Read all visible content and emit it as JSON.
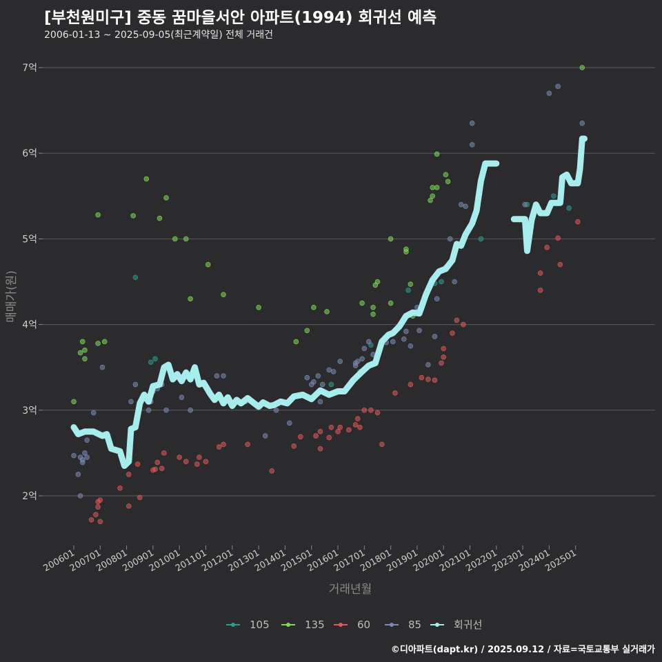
{
  "header": {
    "title": "[부천원미구] 중동 꿈마을서안 아파트(1994) 회귀선 예측",
    "subtitle": "2006-01-13 ~ 2025-09-05(최근계약일) 전체 거래건"
  },
  "footer": {
    "credit": "©디아파트(dapt.kr) / 2025.09.12 / 자료=국토교통부 실거래가"
  },
  "chart_data": {
    "type": "scatter",
    "xlabel": "거래년월",
    "ylabel": "매매가(원)",
    "x_ticks": [
      "200601",
      "200701",
      "200801",
      "200901",
      "201001",
      "201101",
      "201201",
      "201301",
      "201401",
      "201501",
      "201601",
      "201701",
      "201801",
      "201901",
      "202001",
      "202101",
      "202201",
      "202301",
      "202401",
      "202501"
    ],
    "y_ticks": [
      {
        "value": 2,
        "label": "2억"
      },
      {
        "value": 3,
        "label": "3억"
      },
      {
        "value": 4,
        "label": "4억"
      },
      {
        "value": 5,
        "label": "5억"
      },
      {
        "value": 6,
        "label": "6억"
      },
      {
        "value": 7,
        "label": "7억"
      }
    ],
    "ylim": [
      1.45,
      7.35
    ],
    "grid": "horizontal",
    "legend_position": "bottom",
    "colors": {
      "105": "#2a9d8f",
      "135": "#7ed957",
      "60": "#e05a5a",
      "85": "#7c8bb5",
      "회귀선": "#a8eded"
    },
    "series": [
      {
        "name": "105",
        "points": [
          [
            "2008-12",
            3.56
          ],
          [
            "2009-02",
            3.6
          ],
          [
            "2016-11",
            3.45
          ],
          [
            "2017-04",
            3.76
          ],
          [
            "2018-09",
            4.4
          ],
          [
            "2019-09",
            4.48
          ],
          [
            "2019-12",
            4.5
          ],
          [
            "2021-06",
            5.0
          ],
          [
            "2023-03",
            5.4
          ],
          [
            "2024-03",
            5.5
          ],
          [
            "2024-10",
            5.36
          ],
          [
            "2008-05",
            4.55
          ],
          [
            "2015-10",
            3.3
          ]
        ]
      },
      {
        "name": "135",
        "points": [
          [
            "2006-01",
            3.1
          ],
          [
            "2006-04",
            3.67
          ],
          [
            "2006-05",
            3.8
          ],
          [
            "2006-06",
            3.6
          ],
          [
            "2006-06",
            3.7
          ],
          [
            "2006-12",
            5.28
          ],
          [
            "2006-12",
            3.78
          ],
          [
            "2007-03",
            3.8
          ],
          [
            "2008-04",
            5.27
          ],
          [
            "2008-10",
            5.7
          ],
          [
            "2009-04",
            5.24
          ],
          [
            "2009-07",
            5.48
          ],
          [
            "2009-11",
            5.0
          ],
          [
            "2010-04",
            5.0
          ],
          [
            "2010-06",
            4.3
          ],
          [
            "2011-02",
            4.7
          ],
          [
            "2011-09",
            4.35
          ],
          [
            "2013-01",
            4.2
          ],
          [
            "2014-06",
            3.8
          ],
          [
            "2014-11",
            3.93
          ],
          [
            "2015-02",
            4.2
          ],
          [
            "2015-08",
            4.15
          ],
          [
            "2016-12",
            4.25
          ],
          [
            "2017-05",
            4.2
          ],
          [
            "2017-05",
            4.12
          ],
          [
            "2017-06",
            4.46
          ],
          [
            "2017-07",
            4.5
          ],
          [
            "2018-01",
            5.0
          ],
          [
            "2018-01",
            4.25
          ],
          [
            "2018-08",
            4.85
          ],
          [
            "2018-08",
            4.88
          ],
          [
            "2018-10",
            4.47
          ],
          [
            "2018-11",
            4.1
          ],
          [
            "2019-07",
            5.45
          ],
          [
            "2019-08",
            5.6
          ],
          [
            "2019-08",
            5.5
          ],
          [
            "2019-10",
            5.6
          ],
          [
            "2019-10",
            5.99
          ],
          [
            "2020-02",
            5.75
          ],
          [
            "2020-03",
            5.67
          ],
          [
            "2025-04",
            7.0
          ]
        ]
      },
      {
        "name": "60",
        "points": [
          [
            "2006-09",
            1.72
          ],
          [
            "2006-11",
            1.78
          ],
          [
            "2006-12",
            1.87
          ],
          [
            "2006-12",
            1.93
          ],
          [
            "2007-01",
            1.95
          ],
          [
            "2007-01",
            1.7
          ],
          [
            "2007-10",
            2.09
          ],
          [
            "2008-02",
            1.88
          ],
          [
            "2008-02",
            2.25
          ],
          [
            "2008-07",
            1.98
          ],
          [
            "2008-06",
            2.37
          ],
          [
            "2009-01",
            2.3
          ],
          [
            "2009-02",
            2.31
          ],
          [
            "2009-03",
            2.39
          ],
          [
            "2009-05",
            2.32
          ],
          [
            "2009-06",
            2.5
          ],
          [
            "2010-01",
            2.45
          ],
          [
            "2010-04",
            2.4
          ],
          [
            "2010-09",
            2.37
          ],
          [
            "2010-10",
            2.45
          ],
          [
            "2011-01",
            2.4
          ],
          [
            "2011-07",
            2.57
          ],
          [
            "2011-09",
            2.6
          ],
          [
            "2012-08",
            2.6
          ],
          [
            "2013-07",
            2.29
          ],
          [
            "2014-05",
            2.58
          ],
          [
            "2014-08",
            2.69
          ],
          [
            "2015-03",
            2.7
          ],
          [
            "2015-05",
            2.55
          ],
          [
            "2015-05",
            2.75
          ],
          [
            "2015-09",
            2.68
          ],
          [
            "2015-10",
            2.8
          ],
          [
            "2016-01",
            2.75
          ],
          [
            "2016-02",
            2.8
          ],
          [
            "2016-06",
            2.77
          ],
          [
            "2016-09",
            2.83
          ],
          [
            "2016-10",
            2.9
          ],
          [
            "2016-11",
            2.8
          ],
          [
            "2017-01",
            3.0
          ],
          [
            "2017-04",
            3.0
          ],
          [
            "2017-07",
            2.97
          ],
          [
            "2017-09",
            2.6
          ],
          [
            "2018-03",
            3.2
          ],
          [
            "2018-10",
            3.3
          ],
          [
            "2019-03",
            3.38
          ],
          [
            "2019-06",
            3.36
          ],
          [
            "2019-09",
            3.35
          ],
          [
            "2019-12",
            3.55
          ],
          [
            "2020-01",
            3.62
          ],
          [
            "2020-01",
            3.72
          ],
          [
            "2020-05",
            3.9
          ],
          [
            "2020-07",
            4.05
          ],
          [
            "2020-10",
            4.0
          ],
          [
            "2023-09",
            4.4
          ],
          [
            "2023-09",
            4.6
          ],
          [
            "2023-12",
            4.9
          ],
          [
            "2024-05",
            5.01
          ],
          [
            "2024-06",
            4.7
          ],
          [
            "2025-02",
            5.2
          ]
        ]
      },
      {
        "name": "85",
        "points": [
          [
            "2006-01",
            2.47
          ],
          [
            "2006-03",
            2.25
          ],
          [
            "2006-04",
            2.45
          ],
          [
            "2006-04",
            2.0
          ],
          [
            "2006-05",
            2.39
          ],
          [
            "2006-05",
            2.42
          ],
          [
            "2006-07",
            2.45
          ],
          [
            "2006-07",
            2.65
          ],
          [
            "2006-06",
            2.5
          ],
          [
            "2006-10",
            2.97
          ],
          [
            "2007-02",
            3.5
          ],
          [
            "2008-03",
            3.1
          ],
          [
            "2008-05",
            3.3
          ],
          [
            "2008-11",
            3.0
          ],
          [
            "2008-12",
            3.1
          ],
          [
            "2009-01",
            3.22
          ],
          [
            "2009-03",
            3.25
          ],
          [
            "2009-04",
            3.3
          ],
          [
            "2009-05",
            3.3
          ],
          [
            "2009-07",
            3.0
          ],
          [
            "2010-02",
            3.15
          ],
          [
            "2010-06",
            3.0
          ],
          [
            "2010-11",
            3.3
          ],
          [
            "2011-06",
            3.4
          ],
          [
            "2011-09",
            3.4
          ],
          [
            "2012-03",
            3.1
          ],
          [
            "2012-07",
            3.1
          ],
          [
            "2013-01",
            3.05
          ],
          [
            "2013-04",
            2.7
          ],
          [
            "2013-09",
            3.0
          ],
          [
            "2014-03",
            2.85
          ],
          [
            "2014-11",
            3.38
          ],
          [
            "2015-01",
            3.3
          ],
          [
            "2015-02",
            3.33
          ],
          [
            "2015-04",
            3.4
          ],
          [
            "2015-05",
            3.1
          ],
          [
            "2015-06",
            3.3
          ],
          [
            "2015-09",
            3.47
          ],
          [
            "2015-11",
            3.45
          ],
          [
            "2016-02",
            3.57
          ],
          [
            "2016-09",
            3.52
          ],
          [
            "2016-09",
            3.55
          ],
          [
            "2016-10",
            3.57
          ],
          [
            "2016-12",
            3.6
          ],
          [
            "2017-01",
            3.72
          ],
          [
            "2017-03",
            3.8
          ],
          [
            "2017-05",
            3.65
          ],
          [
            "2017-09",
            3.78
          ],
          [
            "2017-11",
            3.79
          ],
          [
            "2018-02",
            3.8
          ],
          [
            "2018-07",
            3.83
          ],
          [
            "2018-08",
            3.92
          ],
          [
            "2018-10",
            3.75
          ],
          [
            "2019-01",
            4.2
          ],
          [
            "2019-02",
            3.93
          ],
          [
            "2019-06",
            3.53
          ],
          [
            "2019-09",
            3.86
          ],
          [
            "2019-10",
            4.3
          ],
          [
            "2020-02",
            4.67
          ],
          [
            "2020-04",
            5.0
          ],
          [
            "2020-06",
            4.5
          ],
          [
            "2020-11",
            5.38
          ],
          [
            "2020-09",
            5.4
          ],
          [
            "2021-02",
            6.1
          ],
          [
            "2021-02",
            6.35
          ],
          [
            "2023-02",
            5.4
          ],
          [
            "2024-01",
            6.7
          ],
          [
            "2024-05",
            6.78
          ],
          [
            "2025-04",
            6.35
          ]
        ]
      }
    ],
    "regression_line": {
      "name": "회귀선",
      "segments": [
        [
          [
            "2006-01",
            2.8
          ],
          [
            "2006-03",
            2.72
          ],
          [
            "2006-06",
            2.75
          ],
          [
            "2006-10",
            2.75
          ],
          [
            "2007-02",
            2.7
          ],
          [
            "2007-04",
            2.72
          ],
          [
            "2007-06",
            2.55
          ],
          [
            "2007-10",
            2.52
          ],
          [
            "2007-12",
            2.35
          ],
          [
            "2008-02",
            2.4
          ],
          [
            "2008-03",
            2.78
          ],
          [
            "2008-05",
            2.8
          ],
          [
            "2008-07",
            3.08
          ],
          [
            "2008-09",
            3.18
          ],
          [
            "2008-11",
            3.1
          ],
          [
            "2009-01",
            3.28
          ],
          [
            "2009-04",
            3.3
          ],
          [
            "2009-06",
            3.5
          ],
          [
            "2009-08",
            3.53
          ],
          [
            "2009-10",
            3.36
          ],
          [
            "2009-12",
            3.42
          ],
          [
            "2010-02",
            3.34
          ],
          [
            "2010-04",
            3.44
          ],
          [
            "2010-06",
            3.36
          ],
          [
            "2010-08",
            3.5
          ],
          [
            "2010-10",
            3.3
          ],
          [
            "2010-12",
            3.32
          ],
          [
            "2011-03",
            3.19
          ],
          [
            "2011-05",
            3.12
          ],
          [
            "2011-07",
            3.18
          ],
          [
            "2011-09",
            3.08
          ],
          [
            "2011-11",
            3.15
          ],
          [
            "2012-01",
            3.05
          ],
          [
            "2012-03",
            3.12
          ],
          [
            "2012-05",
            3.08
          ],
          [
            "2012-08",
            3.14
          ],
          [
            "2012-10",
            3.1
          ],
          [
            "2013-01",
            3.04
          ],
          [
            "2013-03",
            3.09
          ],
          [
            "2013-06",
            3.05
          ],
          [
            "2013-08",
            3.06
          ],
          [
            "2013-11",
            3.1
          ],
          [
            "2014-02",
            3.08
          ],
          [
            "2014-05",
            3.16
          ],
          [
            "2014-09",
            3.18
          ],
          [
            "2015-01",
            3.13
          ],
          [
            "2015-05",
            3.23
          ],
          [
            "2015-09",
            3.18
          ],
          [
            "2016-01",
            3.22
          ],
          [
            "2016-04",
            3.22
          ],
          [
            "2016-08",
            3.35
          ],
          [
            "2016-12",
            3.45
          ],
          [
            "2017-03",
            3.52
          ],
          [
            "2017-06",
            3.55
          ],
          [
            "2017-09",
            3.8
          ],
          [
            "2017-12",
            3.88
          ],
          [
            "2018-02",
            3.9
          ],
          [
            "2018-05",
            3.98
          ],
          [
            "2018-08",
            4.1
          ],
          [
            "2018-11",
            4.14
          ],
          [
            "2019-02",
            4.13
          ],
          [
            "2019-05",
            4.35
          ],
          [
            "2019-08",
            4.52
          ],
          [
            "2019-11",
            4.62
          ],
          [
            "2020-02",
            4.65
          ],
          [
            "2020-05",
            4.75
          ],
          [
            "2020-07",
            4.94
          ],
          [
            "2020-09",
            4.92
          ],
          [
            "2020-11",
            5.05
          ],
          [
            "2021-02",
            5.18
          ],
          [
            "2021-04",
            5.33
          ],
          [
            "2021-06",
            5.68
          ],
          [
            "2021-08",
            5.88
          ],
          [
            "2022-01",
            5.88
          ]
        ],
        [
          [
            "2022-09",
            5.23
          ],
          [
            "2023-02",
            5.23
          ],
          [
            "2023-03",
            4.86
          ],
          [
            "2023-05",
            5.22
          ],
          [
            "2023-07",
            5.4
          ],
          [
            "2023-09",
            5.3
          ],
          [
            "2023-12",
            5.3
          ],
          [
            "2024-02",
            5.42
          ],
          [
            "2024-06",
            5.42
          ],
          [
            "2024-07",
            5.72
          ],
          [
            "2024-09",
            5.75
          ],
          [
            "2024-11",
            5.65
          ],
          [
            "2025-02",
            5.65
          ],
          [
            "2025-03",
            5.82
          ],
          [
            "2025-04",
            6.17
          ],
          [
            "2025-05",
            6.17
          ]
        ]
      ]
    }
  }
}
